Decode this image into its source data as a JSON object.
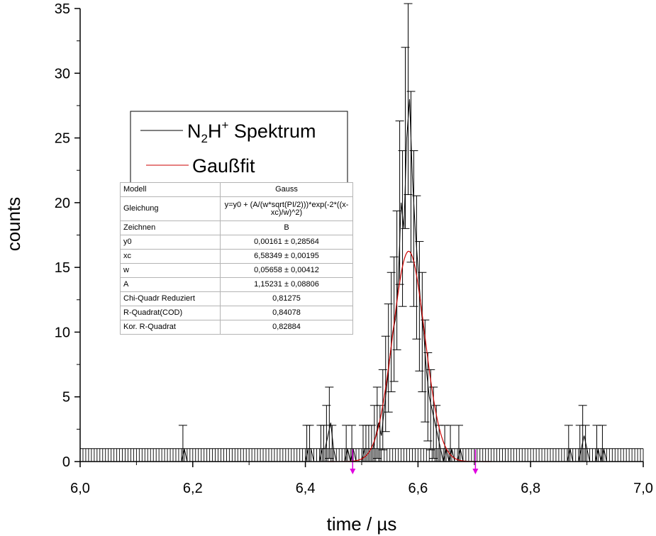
{
  "chart_data": {
    "type": "scatter",
    "xlabel": "time / µs",
    "ylabel": "counts",
    "xlim": [
      6.0,
      7.0
    ],
    "ylim": [
      0,
      35
    ],
    "xticks": [
      "6,0",
      "6,2",
      "6,4",
      "6,6",
      "6,8",
      "7,0"
    ],
    "yticks": [
      "0",
      "5",
      "10",
      "15",
      "20",
      "25",
      "30",
      "35"
    ],
    "grid": false,
    "legend_position": "upper-left",
    "series": [
      {
        "name": "N2H+ Spektrum",
        "color": "#000000",
        "style": "line-with-errorbars",
        "x": [
          6.1825,
          6.4025,
          6.4075,
          6.4275,
          6.4325,
          6.4375,
          6.4425,
          6.4475,
          6.4725,
          6.4825,
          6.5025,
          6.5075,
          6.5125,
          6.5175,
          6.5225,
          6.5275,
          6.5325,
          6.5375,
          6.5425,
          6.5475,
          6.5525,
          6.5575,
          6.5625,
          6.5675,
          6.5725,
          6.5775,
          6.5825,
          6.5875,
          6.5925,
          6.5975,
          6.6025,
          6.6075,
          6.6125,
          6.6175,
          6.6225,
          6.6275,
          6.6325,
          6.6375,
          6.6475,
          6.6575,
          6.6725,
          6.8675,
          6.8875,
          6.8925,
          6.8975,
          6.9175,
          6.9275
        ],
        "y": [
          1,
          1,
          1,
          1,
          1,
          2,
          3,
          1,
          1,
          1,
          1,
          1,
          1,
          1,
          2,
          3,
          2,
          4,
          6,
          8,
          10,
          11,
          14,
          20,
          18,
          25,
          28,
          22,
          18,
          15,
          12,
          10,
          7,
          5,
          4,
          3,
          2,
          1,
          1,
          1,
          1,
          1,
          1,
          2,
          1,
          1,
          1
        ],
        "baseline": 0,
        "baseline_error": 1
      },
      {
        "name": "Gaußfit",
        "color": "#cc0000",
        "style": "line",
        "model": "Gauss",
        "params": {
          "y0": 0.00161,
          "xc": 6.58349,
          "w": 0.05658,
          "A": 1.15231
        }
      }
    ],
    "annotations": [
      {
        "type": "marker-arrow",
        "x": 6.484,
        "color": "#e000e0"
      },
      {
        "type": "marker-arrow",
        "x": 6.702,
        "color": "#e000e0"
      }
    ]
  },
  "legend": {
    "spectrum_main": "N",
    "spectrum_sub": "2",
    "spectrum_mid": "H",
    "spectrum_sup": "+",
    "spectrum_tail": " Spektrum",
    "fit_label": "Gaußfit"
  },
  "fit_table": {
    "rows": [
      {
        "key": "Modell",
        "value": "Gauss"
      },
      {
        "key": "Gleichung",
        "value": "y=y0 + (A/(w*sqrt(PI/2)))*exp(-2*((x-xc)/w)^2)"
      },
      {
        "key": "Zeichnen",
        "value": "B"
      },
      {
        "key": "y0",
        "value": "0,00161 ± 0,28564"
      },
      {
        "key": "xc",
        "value": "6,58349 ± 0,00195"
      },
      {
        "key": "w",
        "value": "0,05658 ± 0,00412"
      },
      {
        "key": "A",
        "value": "1,15231 ± 0,08806"
      },
      {
        "key": "Chi-Quadr Reduziert",
        "value": "0,81275"
      },
      {
        "key": "R-Quadrat(COD)",
        "value": "0,84078"
      },
      {
        "key": "Kor. R-Quadrat",
        "value": "0,82884"
      }
    ]
  }
}
